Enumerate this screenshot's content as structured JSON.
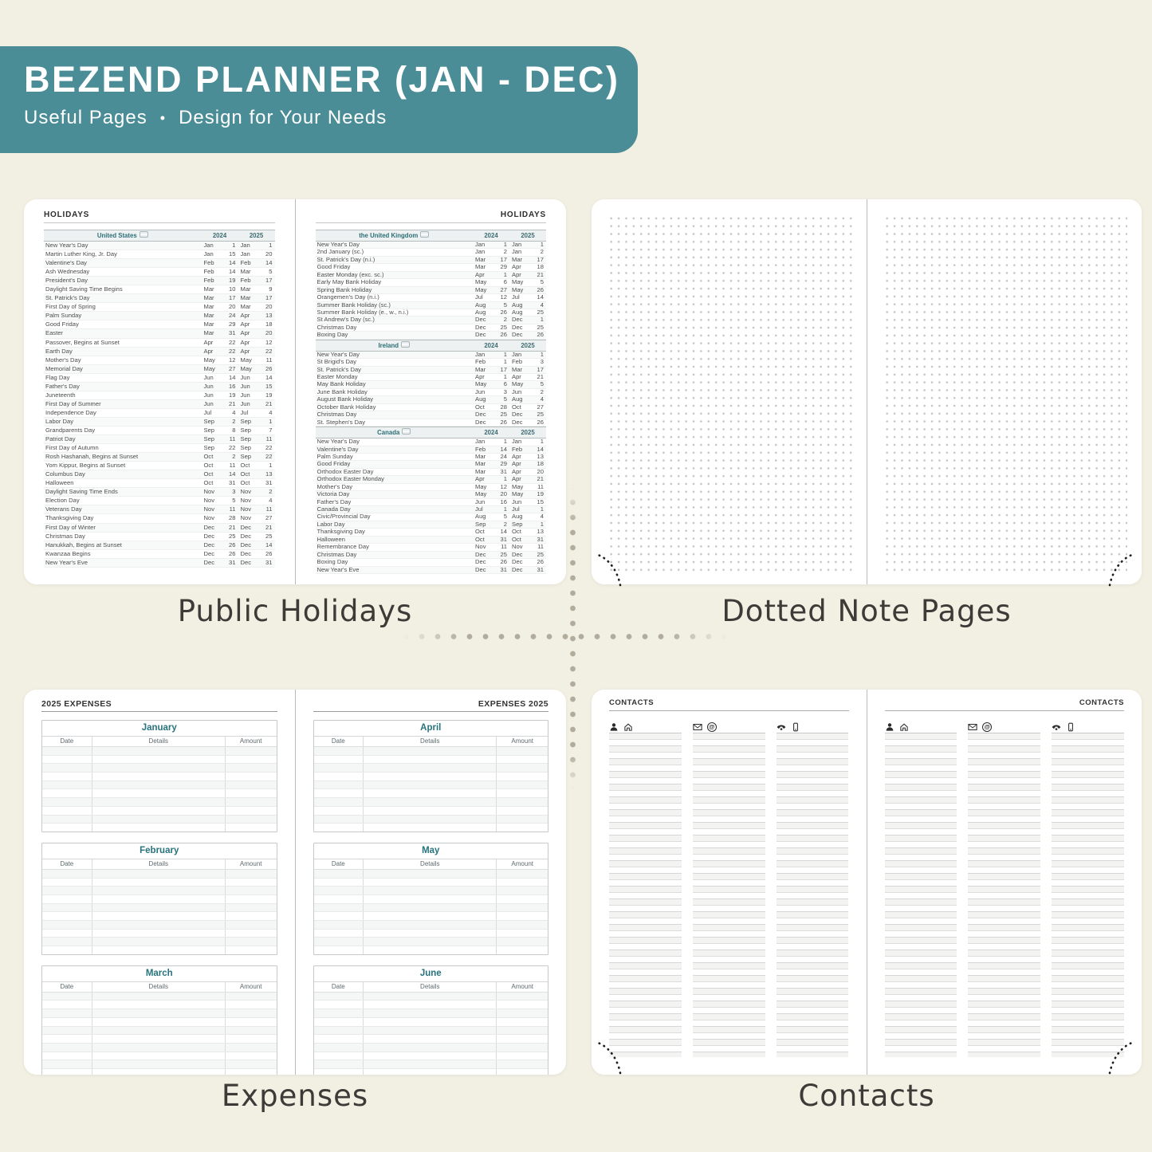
{
  "colors": {
    "page_bg": "#f2efe3",
    "banner_bg": "#4b8d96",
    "banner_text": "#ffffff",
    "panel_bg": "#ffffff",
    "accent_teal": "#27737d",
    "caption_text": "#3c3b37",
    "table_border": "#c6cacc",
    "cross_dots": "#b2ac9d"
  },
  "header": {
    "title": "BEZEND PLANNER (JAN - DEC)",
    "subtitle_left": "Useful Pages",
    "subtitle_separator": "•",
    "subtitle_right": "Design for Your Needs"
  },
  "captions": {
    "holidays": "Public Holidays",
    "dotted": "Dotted Note Pages",
    "expenses": "Expenses",
    "contacts": "Contacts"
  },
  "holidays_spread": {
    "left_page_title": "HOLIDAYS",
    "right_page_title": "HOLIDAYS",
    "year_columns": [
      "2024",
      "2025"
    ],
    "sections_left": [
      {
        "country": "United States",
        "flag_icon": "us-flag-icon",
        "rows": [
          [
            "New Year's Day",
            "Jan",
            "1",
            "Jan",
            "1"
          ],
          [
            "Martin Luther King, Jr. Day",
            "Jan",
            "15",
            "Jan",
            "20"
          ],
          [
            "Valentine's Day",
            "Feb",
            "14",
            "Feb",
            "14"
          ],
          [
            "Ash Wednesday",
            "Feb",
            "14",
            "Mar",
            "5"
          ],
          [
            "President's Day",
            "Feb",
            "19",
            "Feb",
            "17"
          ],
          [
            "Daylight Saving Time Begins",
            "Mar",
            "10",
            "Mar",
            "9"
          ],
          [
            "St. Patrick's Day",
            "Mar",
            "17",
            "Mar",
            "17"
          ],
          [
            "First Day of Spring",
            "Mar",
            "20",
            "Mar",
            "20"
          ],
          [
            "Palm Sunday",
            "Mar",
            "24",
            "Apr",
            "13"
          ],
          [
            "Good Friday",
            "Mar",
            "29",
            "Apr",
            "18"
          ],
          [
            "Easter",
            "Mar",
            "31",
            "Apr",
            "20"
          ],
          [
            "Passover, Begins at Sunset",
            "Apr",
            "22",
            "Apr",
            "12"
          ],
          [
            "Earth Day",
            "Apr",
            "22",
            "Apr",
            "22"
          ],
          [
            "Mother's Day",
            "May",
            "12",
            "May",
            "11"
          ],
          [
            "Memorial Day",
            "May",
            "27",
            "May",
            "26"
          ],
          [
            "Flag Day",
            "Jun",
            "14",
            "Jun",
            "14"
          ],
          [
            "Father's Day",
            "Jun",
            "16",
            "Jun",
            "15"
          ],
          [
            "Juneteenth",
            "Jun",
            "19",
            "Jun",
            "19"
          ],
          [
            "First Day of Summer",
            "Jun",
            "21",
            "Jun",
            "21"
          ],
          [
            "Independence Day",
            "Jul",
            "4",
            "Jul",
            "4"
          ],
          [
            "Labor Day",
            "Sep",
            "2",
            "Sep",
            "1"
          ],
          [
            "Grandparents Day",
            "Sep",
            "8",
            "Sep",
            "7"
          ],
          [
            "Patriot Day",
            "Sep",
            "11",
            "Sep",
            "11"
          ],
          [
            "First Day of Autumn",
            "Sep",
            "22",
            "Sep",
            "22"
          ],
          [
            "Rosh Hashanah, Begins at Sunset",
            "Oct",
            "2",
            "Sep",
            "22"
          ],
          [
            "Yom Kippur, Begins at Sunset",
            "Oct",
            "11",
            "Oct",
            "1"
          ],
          [
            "Columbus Day",
            "Oct",
            "14",
            "Oct",
            "13"
          ],
          [
            "Halloween",
            "Oct",
            "31",
            "Oct",
            "31"
          ],
          [
            "Daylight Saving Time Ends",
            "Nov",
            "3",
            "Nov",
            "2"
          ],
          [
            "Election Day",
            "Nov",
            "5",
            "Nov",
            "4"
          ],
          [
            "Veterans Day",
            "Nov",
            "11",
            "Nov",
            "11"
          ],
          [
            "Thanksgiving Day",
            "Nov",
            "28",
            "Nov",
            "27"
          ],
          [
            "First Day of Winter",
            "Dec",
            "21",
            "Dec",
            "21"
          ],
          [
            "Christmas Day",
            "Dec",
            "25",
            "Dec",
            "25"
          ],
          [
            "Hanukkah, Begins at Sunset",
            "Dec",
            "26",
            "Dec",
            "14"
          ],
          [
            "Kwanzaa Begins",
            "Dec",
            "26",
            "Dec",
            "26"
          ],
          [
            "New Year's Eve",
            "Dec",
            "31",
            "Dec",
            "31"
          ]
        ]
      },
      {}
    ],
    "sections_right": [
      {
        "country": "the United Kingdom",
        "flag_icon": "uk-flag-icon",
        "rows": [
          [
            "New Year's Day",
            "Jan",
            "1",
            "Jan",
            "1"
          ],
          [
            "2nd January (sc.)",
            "Jan",
            "2",
            "Jan",
            "2"
          ],
          [
            "St. Patrick's Day (n.i.)",
            "Mar",
            "17",
            "Mar",
            "17"
          ],
          [
            "Good Friday",
            "Mar",
            "29",
            "Apr",
            "18"
          ],
          [
            "Easter Monday (exc. sc.)",
            "Apr",
            "1",
            "Apr",
            "21"
          ],
          [
            "Early May Bank Holiday",
            "May",
            "6",
            "May",
            "5"
          ],
          [
            "Spring Bank Holiday",
            "May",
            "27",
            "May",
            "26"
          ],
          [
            "Orangemen's Day (n.i.)",
            "Jul",
            "12",
            "Jul",
            "14"
          ],
          [
            "Summer Bank Holiday (sc.)",
            "Aug",
            "5",
            "Aug",
            "4"
          ],
          [
            "Summer Bank Holiday (e., w., n.i.)",
            "Aug",
            "26",
            "Aug",
            "25"
          ],
          [
            "St Andrew's Day (sc.)",
            "Dec",
            "2",
            "Dec",
            "1"
          ],
          [
            "Christmas Day",
            "Dec",
            "25",
            "Dec",
            "25"
          ],
          [
            "Boxing Day",
            "Dec",
            "26",
            "Dec",
            "26"
          ]
        ]
      },
      {
        "country": "Ireland",
        "flag_icon": "ireland-flag-icon",
        "rows": [
          [
            "New Year's Day",
            "Jan",
            "1",
            "Jan",
            "1"
          ],
          [
            "St Brigid's Day",
            "Feb",
            "1",
            "Feb",
            "3"
          ],
          [
            "St. Patrick's Day",
            "Mar",
            "17",
            "Mar",
            "17"
          ],
          [
            "Easter Monday",
            "Apr",
            "1",
            "Apr",
            "21"
          ],
          [
            "May Bank Holiday",
            "May",
            "6",
            "May",
            "5"
          ],
          [
            "June Bank Holiday",
            "Jun",
            "3",
            "Jun",
            "2"
          ],
          [
            "August Bank Holiday",
            "Aug",
            "5",
            "Aug",
            "4"
          ],
          [
            "October Bank Holiday",
            "Oct",
            "28",
            "Oct",
            "27"
          ],
          [
            "Christmas Day",
            "Dec",
            "25",
            "Dec",
            "25"
          ],
          [
            "St. Stephen's Day",
            "Dec",
            "26",
            "Dec",
            "26"
          ]
        ]
      },
      {
        "country": "Canada",
        "flag_icon": "canada-flag-icon",
        "rows": [
          [
            "New Year's Day",
            "Jan",
            "1",
            "Jan",
            "1"
          ],
          [
            "Valentine's Day",
            "Feb",
            "14",
            "Feb",
            "14"
          ],
          [
            "Palm Sunday",
            "Mar",
            "24",
            "Apr",
            "13"
          ],
          [
            "Good Friday",
            "Mar",
            "29",
            "Apr",
            "18"
          ],
          [
            "Orthodox Easter Day",
            "Mar",
            "31",
            "Apr",
            "20"
          ],
          [
            "Orthodox Easter Monday",
            "Apr",
            "1",
            "Apr",
            "21"
          ],
          [
            "Mother's Day",
            "May",
            "12",
            "May",
            "11"
          ],
          [
            "Victoria Day",
            "May",
            "20",
            "May",
            "19"
          ],
          [
            "Father's Day",
            "Jun",
            "16",
            "Jun",
            "15"
          ],
          [
            "Canada Day",
            "Jul",
            "1",
            "Jul",
            "1"
          ],
          [
            "Civic/Provincial Day",
            "Aug",
            "5",
            "Aug",
            "4"
          ],
          [
            "Labor Day",
            "Sep",
            "2",
            "Sep",
            "1"
          ],
          [
            "Thanksgiving Day",
            "Oct",
            "14",
            "Oct",
            "13"
          ],
          [
            "Halloween",
            "Oct",
            "31",
            "Oct",
            "31"
          ],
          [
            "Remembrance Day",
            "Nov",
            "11",
            "Nov",
            "11"
          ],
          [
            "Christmas Day",
            "Dec",
            "25",
            "Dec",
            "25"
          ],
          [
            "Boxing Day",
            "Dec",
            "26",
            "Dec",
            "26"
          ],
          [
            "New Year's Eve",
            "Dec",
            "31",
            "Dec",
            "31"
          ]
        ]
      }
    ]
  },
  "expenses_spread": {
    "left_page_title": "2025 EXPENSES",
    "right_page_title": "EXPENSES 2025",
    "column_headers": [
      "Date",
      "Details",
      "Amount"
    ],
    "left_months": [
      "January",
      "February",
      "March"
    ],
    "right_months": [
      "April",
      "May",
      "June"
    ],
    "rows_per_table": 10
  },
  "contacts_spread": {
    "left_page_title": "CONTACTS",
    "right_page_title": "CONTACTS",
    "columns": [
      {
        "icons": [
          "person-icon",
          "house-icon"
        ]
      },
      {
        "icons": [
          "envelope-icon",
          "at-sign-icon"
        ]
      },
      {
        "icons": [
          "phone-icon",
          "mobile-phone-icon"
        ]
      }
    ],
    "rows_per_column": 26
  }
}
